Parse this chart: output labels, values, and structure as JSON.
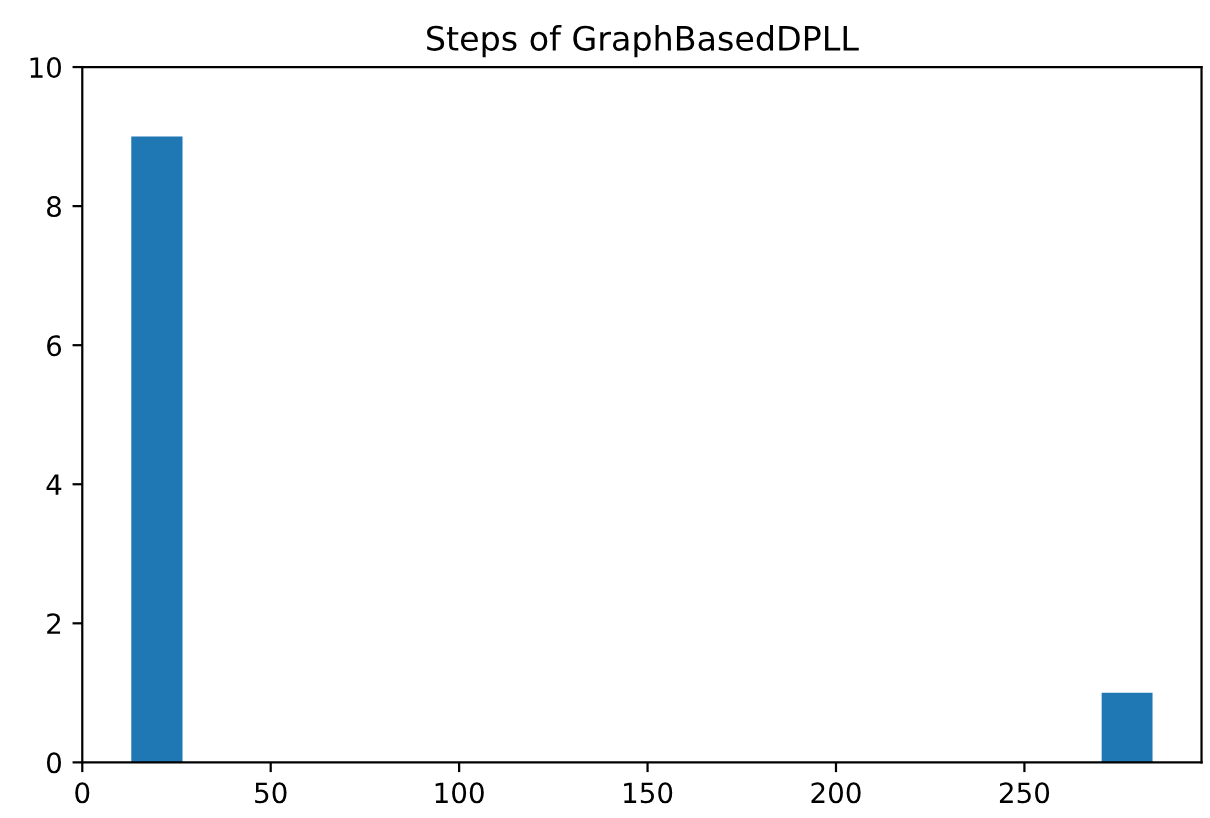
{
  "chart_data": {
    "type": "histogram",
    "title": "Steps of GraphBasedDPLL",
    "bins": [
      13,
      26.6,
      40.1,
      53.7,
      67.2,
      80.8,
      94.3,
      107.9,
      121.4,
      135,
      148.5,
      162.1,
      175.6,
      189.2,
      202.7,
      216.3,
      229.8,
      243.4,
      256.9,
      270.5,
      284
    ],
    "values": [
      9,
      0,
      0,
      0,
      0,
      0,
      0,
      0,
      0,
      0,
      0,
      0,
      0,
      0,
      0,
      0,
      0,
      0,
      0,
      1
    ],
    "color": "#1f77b4",
    "xlim": [
      0,
      297
    ],
    "xticks": [
      0,
      50,
      100,
      150,
      200,
      250
    ],
    "ylim": [
      0,
      10
    ],
    "yticks": [
      0,
      2,
      4,
      6,
      8,
      10
    ]
  }
}
